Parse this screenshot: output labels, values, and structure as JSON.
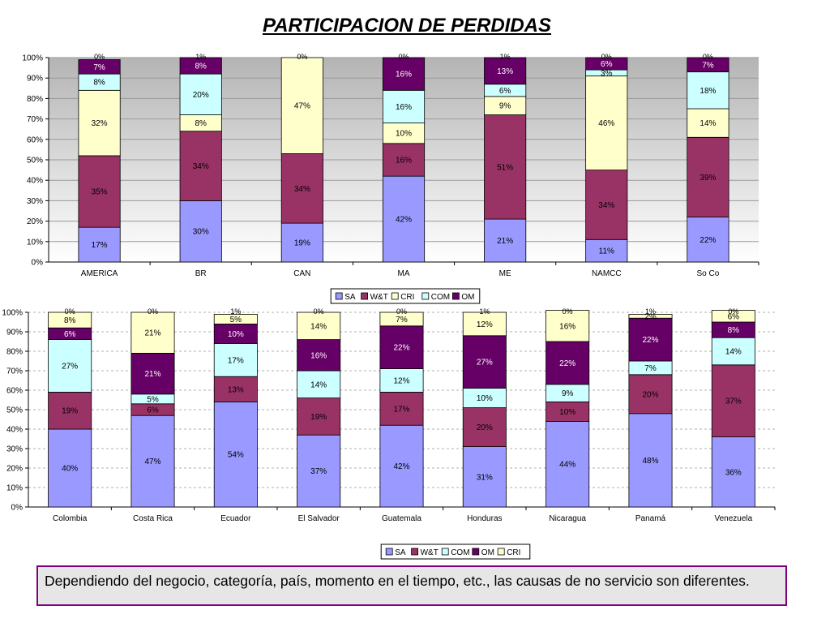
{
  "title": "PARTICIPACION DE PERDIDAS",
  "note": "Dependiendo del negocio, categoría, país, momento en el tiempo, etc., las causas de no servicio son diferentes.",
  "colors": {
    "SA": "#9999ff",
    "W&T": "#993366",
    "CRI": "#ffffcc",
    "COM": "#ccffff",
    "OM": "#660066"
  },
  "chart_data": [
    {
      "type": "bar",
      "stacked": true,
      "percent_stacked": true,
      "categories": [
        "AMERICA",
        "BR",
        "CAN",
        "MA",
        "ME",
        "NAMCC",
        "So Co"
      ],
      "ylim": [
        0,
        100
      ],
      "y_ticks": [
        "0%",
        "10%",
        "20%",
        "30%",
        "40%",
        "50%",
        "60%",
        "70%",
        "80%",
        "90%",
        "100%"
      ],
      "background": "gradient-gray",
      "legend": [
        "SA",
        "W&T",
        "CRI",
        "COM",
        "OM"
      ],
      "legend_position": "bottom",
      "series": [
        {
          "name": "SA",
          "values": [
            17,
            30,
            19,
            42,
            21,
            11,
            22
          ]
        },
        {
          "name": "W&T",
          "values": [
            35,
            34,
            34,
            16,
            51,
            34,
            39
          ]
        },
        {
          "name": "CRI",
          "values": [
            32,
            8,
            47,
            10,
            9,
            46,
            14
          ]
        },
        {
          "name": "COM",
          "values": [
            8,
            20,
            0,
            16,
            6,
            3,
            18
          ]
        },
        {
          "name": "OM",
          "values": [
            7,
            8,
            0,
            16,
            13,
            6,
            7
          ]
        }
      ],
      "top_labels": [
        "0%",
        "1%",
        "0%",
        "0%",
        "1%",
        "0%",
        "0%"
      ]
    },
    {
      "type": "bar",
      "stacked": true,
      "percent_stacked": true,
      "categories": [
        "Colombia",
        "Costa Rica",
        "Ecuador",
        "El Salvador",
        "Guatemala",
        "Honduras",
        "Nicaragua",
        "Panamá",
        "Venezuela"
      ],
      "ylim": [
        0,
        100
      ],
      "y_ticks": [
        "0%",
        "10%",
        "20%",
        "30%",
        "40%",
        "50%",
        "60%",
        "70%",
        "80%",
        "90%",
        "100%"
      ],
      "background": "white-dashed-grid",
      "legend": [
        "SA",
        "W&T",
        "COM",
        "OM",
        "CRI"
      ],
      "legend_position": "bottom",
      "series": [
        {
          "name": "SA",
          "values": [
            40,
            47,
            54,
            37,
            42,
            31,
            44,
            48,
            36
          ]
        },
        {
          "name": "W&T",
          "values": [
            19,
            6,
            13,
            19,
            17,
            20,
            10,
            20,
            37
          ]
        },
        {
          "name": "COM",
          "values": [
            27,
            5,
            17,
            14,
            12,
            10,
            9,
            7,
            14
          ]
        },
        {
          "name": "OM",
          "values": [
            6,
            21,
            10,
            16,
            22,
            27,
            22,
            22,
            8
          ]
        },
        {
          "name": "CRI",
          "values": [
            8,
            21,
            5,
            14,
            7,
            12,
            16,
            2,
            6
          ]
        }
      ],
      "top_labels": [
        "0%",
        "0%",
        "1%",
        "0%",
        "0%",
        "1%",
        "0%",
        "1%",
        "0%"
      ]
    }
  ]
}
